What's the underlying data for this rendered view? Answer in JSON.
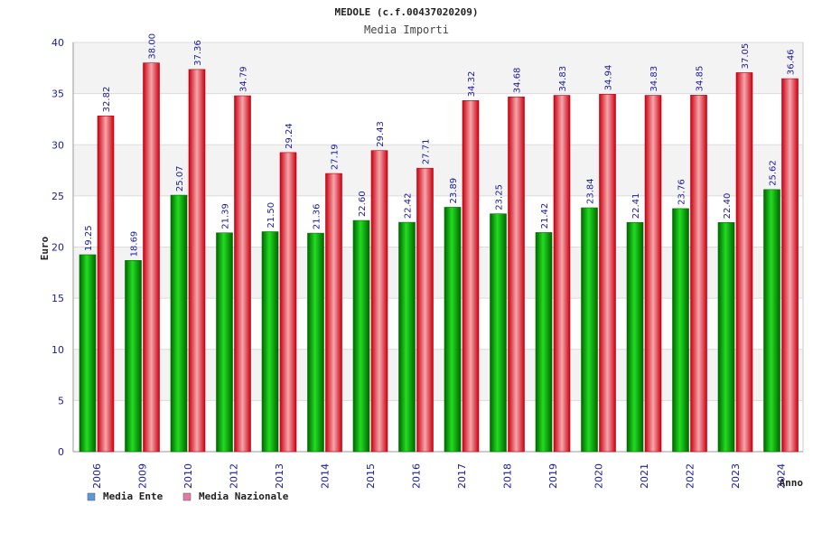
{
  "chart_data": {
    "type": "bar",
    "title": "MEDOLE (c.f.00437020209)",
    "subtitle": "Media Importi",
    "xlabel": "Anno",
    "ylabel": "Euro",
    "ylim": [
      0,
      40
    ],
    "yticks": [
      0,
      5,
      10,
      15,
      20,
      25,
      30,
      35,
      40
    ],
    "categories": [
      "2006",
      "2009",
      "2010",
      "2012",
      "2013",
      "2014",
      "2015",
      "2016",
      "2017",
      "2018",
      "2019",
      "2020",
      "2021",
      "2022",
      "2023",
      "2024"
    ],
    "series": [
      {
        "name": "Media Ente",
        "color": "#00b000",
        "values": [
          19.25,
          18.69,
          25.07,
          21.39,
          21.5,
          21.36,
          22.6,
          22.42,
          23.89,
          23.25,
          21.42,
          23.84,
          22.41,
          23.76,
          22.4,
          25.62
        ]
      },
      {
        "name": "Media Nazionale",
        "color": "#e8202a",
        "values": [
          32.82,
          38.0,
          37.36,
          34.79,
          29.24,
          27.19,
          29.43,
          27.71,
          34.32,
          34.68,
          34.83,
          34.94,
          34.83,
          34.85,
          37.05,
          36.46
        ]
      }
    ],
    "grid": true,
    "legend": "bottom-left",
    "legend_swatches": [
      "#5b9bd5",
      "#e07ba5"
    ]
  }
}
